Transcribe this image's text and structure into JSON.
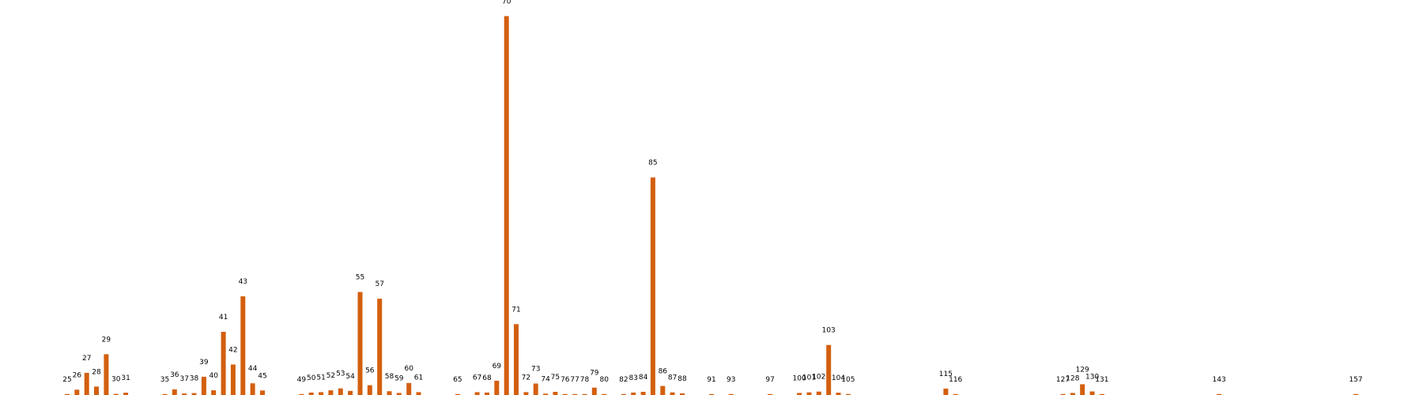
{
  "chart_data": {
    "type": "bar",
    "xlabel": "",
    "ylabel": "",
    "grid": false,
    "bar_color": "#d35f0f",
    "ylim": [
      0,
      0.2
    ],
    "categories": [
      25,
      26,
      27,
      28,
      29,
      30,
      31,
      35,
      36,
      37,
      38,
      39,
      40,
      41,
      42,
      43,
      44,
      45,
      49,
      50,
      51,
      52,
      53,
      54,
      55,
      56,
      57,
      58,
      59,
      60,
      61,
      65,
      67,
      68,
      69,
      70,
      71,
      72,
      73,
      74,
      75,
      76,
      77,
      78,
      79,
      80,
      82,
      83,
      84,
      85,
      86,
      87,
      88,
      91,
      93,
      97,
      100,
      101,
      102,
      103,
      104,
      105,
      115,
      116,
      127,
      128,
      129,
      130,
      131,
      143,
      157
    ],
    "values": [
      0.0005,
      0.0028,
      0.0118,
      0.0045,
      0.0217,
      0.0006,
      0.0012,
      0.0005,
      0.003,
      0.0008,
      0.001,
      0.0097,
      0.0025,
      0.0336,
      0.0162,
      0.0525,
      0.0062,
      0.0024,
      0.0001,
      0.0013,
      0.0015,
      0.0025,
      0.0035,
      0.0022,
      0.0548,
      0.0052,
      0.0512,
      0.002,
      0.0011,
      0.0064,
      0.0015,
      0.0001,
      0.0015,
      0.0013,
      0.0076,
      0.2015,
      0.0377,
      0.0015,
      0.0061,
      0.0007,
      0.0017,
      0.0002,
      0.0001,
      0.0005,
      0.0039,
      0.0004,
      0.0001,
      0.0013,
      0.0017,
      0.1157,
      0.0048,
      0.0014,
      0.0009,
      0.0005,
      0.0001,
      0.0005,
      0.0011,
      0.0014,
      0.0018,
      0.0266,
      0.0012,
      0.0004,
      0.0034,
      0.0001,
      0.0004,
      0.0011,
      0.0057,
      0.0019,
      0.0005,
      0.0001,
      0.0004
    ]
  }
}
